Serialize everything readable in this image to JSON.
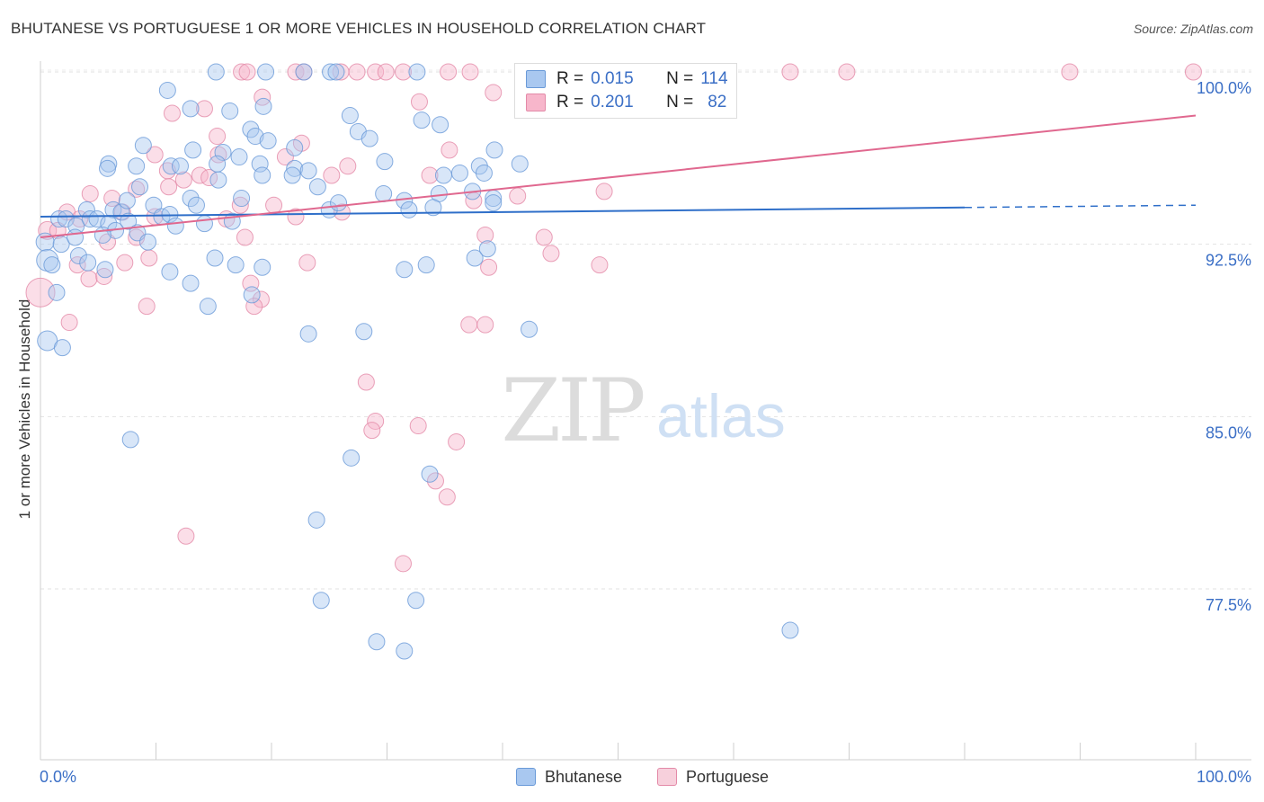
{
  "title": "BHUTANESE VS PORTUGUESE 1 OR MORE VEHICLES IN HOUSEHOLD CORRELATION CHART",
  "source": "Source: ZipAtlas.com",
  "watermark": {
    "zip": "ZIP",
    "atlas": "atlas"
  },
  "legend": {
    "rows": [
      {
        "r_label": "R =",
        "r_value": "0.015",
        "n_label": "N =",
        "n_value": "114"
      },
      {
        "r_label": "R =",
        "r_value": "0.201",
        "n_label": "N =",
        "n_value": "82"
      }
    ]
  },
  "colors": {
    "bhutanese_fill": "#a9c8f0",
    "bhutanese_stroke": "#6a9ad8",
    "bhutanese_line": "#2f6fc9",
    "portuguese_fill": "#f7b6cb",
    "portuguese_stroke": "#e38aa8",
    "portuguese_line": "#e0688f",
    "axis_text": "#3b6fc6"
  },
  "chart_data": {
    "type": "scatter",
    "title": "BHUTANESE VS PORTUGUESE 1 OR MORE VEHICLES IN HOUSEHOLD CORRELATION CHART",
    "xlabel": "",
    "ylabel": "1 or more Vehicles in Household",
    "x_ticks": [
      "0.0%",
      "100.0%"
    ],
    "y_ticks": [
      "100.0%",
      "92.5%",
      "85.0%",
      "77.5%"
    ],
    "xlim": [
      0,
      100
    ],
    "ylim": [
      70.5,
      101
    ],
    "grid": true,
    "legend_position": "bottom",
    "series": [
      {
        "name": "Bhutanese",
        "stats": {
          "R": 0.015,
          "N": 114
        },
        "trend": {
          "x0": 0,
          "y0": 93.7,
          "x1": 80,
          "y1": 94.1,
          "dashed_to_x": 100,
          "dashed_to_y": 94.2
        },
        "points": [
          [
            15.2,
            100
          ],
          [
            19.5,
            100
          ],
          [
            22.8,
            100
          ],
          [
            25.1,
            100
          ],
          [
            25.6,
            100
          ],
          [
            32.6,
            100
          ],
          [
            59.4,
            100
          ],
          [
            11,
            99.2
          ],
          [
            13,
            98.4
          ],
          [
            16.4,
            98.3
          ],
          [
            18.2,
            97.5
          ],
          [
            19.3,
            98.5
          ],
          [
            26.8,
            98.1
          ],
          [
            27.5,
            97.4
          ],
          [
            28.5,
            97.1
          ],
          [
            33,
            97.9
          ],
          [
            34.6,
            97.7
          ],
          [
            18.6,
            97.2
          ],
          [
            19.7,
            97
          ],
          [
            22,
            96.7
          ],
          [
            8.9,
            96.8
          ],
          [
            13.2,
            96.6
          ],
          [
            15.8,
            96.5
          ],
          [
            17.2,
            96.3
          ],
          [
            29.8,
            96.1
          ],
          [
            39.3,
            96.6
          ],
          [
            41.5,
            96
          ],
          [
            5.9,
            96
          ],
          [
            5.8,
            95.8
          ],
          [
            8.3,
            95.9
          ],
          [
            11.3,
            95.9
          ],
          [
            12.1,
            95.9
          ],
          [
            15.3,
            96
          ],
          [
            19,
            96
          ],
          [
            22,
            95.8
          ],
          [
            23.2,
            95.7
          ],
          [
            36.3,
            95.6
          ],
          [
            34.9,
            95.5
          ],
          [
            38,
            95.9
          ],
          [
            38.4,
            95.6
          ],
          [
            8.6,
            95
          ],
          [
            15.4,
            95.3
          ],
          [
            19.2,
            95.5
          ],
          [
            21.8,
            95.5
          ],
          [
            24,
            95
          ],
          [
            29.7,
            94.7
          ],
          [
            31.5,
            94.4
          ],
          [
            34.5,
            94.7
          ],
          [
            37.4,
            94.8
          ],
          [
            39.2,
            94.5
          ],
          [
            13,
            94.5
          ],
          [
            13.5,
            94.2
          ],
          [
            17.4,
            94.5
          ],
          [
            25,
            94
          ],
          [
            25.8,
            94.3
          ],
          [
            31.9,
            94
          ],
          [
            34,
            94.1
          ],
          [
            39.2,
            94.3
          ],
          [
            4,
            94
          ],
          [
            6.3,
            94
          ],
          [
            7,
            93.9
          ],
          [
            7.5,
            94.4
          ],
          [
            9.8,
            94.2
          ],
          [
            10.5,
            93.7
          ],
          [
            11.2,
            93.8
          ],
          [
            11.7,
            93.3
          ],
          [
            1.6,
            93.6
          ],
          [
            2.2,
            93.6
          ],
          [
            3.1,
            93.3
          ],
          [
            4.3,
            93.6
          ],
          [
            4.9,
            93.6
          ],
          [
            5.9,
            93.4
          ],
          [
            6.5,
            93.1
          ],
          [
            7.6,
            93.5
          ],
          [
            14.2,
            93.4
          ],
          [
            16.6,
            93.5
          ],
          [
            0.4,
            92.6
          ],
          [
            1.8,
            92.5
          ],
          [
            3,
            92.8
          ],
          [
            5.4,
            92.9
          ],
          [
            8.4,
            93
          ],
          [
            9.3,
            92.6
          ],
          [
            0.6,
            91.8
          ],
          [
            1,
            91.6
          ],
          [
            3.3,
            92
          ],
          [
            4.1,
            91.7
          ],
          [
            5.6,
            91.4
          ],
          [
            11.2,
            91.3
          ],
          [
            15.1,
            91.9
          ],
          [
            16.9,
            91.6
          ],
          [
            19.2,
            91.5
          ],
          [
            31.5,
            91.4
          ],
          [
            33.4,
            91.6
          ],
          [
            37.6,
            91.9
          ],
          [
            38.7,
            92.3
          ],
          [
            1.4,
            90.4
          ],
          [
            13,
            90.8
          ],
          [
            18.3,
            90.3
          ],
          [
            14.5,
            89.8
          ],
          [
            0.6,
            88.3
          ],
          [
            1.9,
            88
          ],
          [
            23.2,
            88.6
          ],
          [
            28,
            88.7
          ],
          [
            42.3,
            88.8
          ],
          [
            7.8,
            84
          ],
          [
            26.9,
            83.2
          ],
          [
            33.7,
            82.5
          ],
          [
            23.9,
            80.5
          ],
          [
            24.3,
            77
          ],
          [
            32.5,
            77
          ],
          [
            29.1,
            75.2
          ],
          [
            31.5,
            74.8
          ],
          [
            64.9,
            75.7
          ]
        ]
      },
      {
        "name": "Portuguese",
        "stats": {
          "R": 0.201,
          "N": 82
        },
        "trend": {
          "x0": 0,
          "y0": 92.8,
          "x1": 100,
          "y1": 98.1
        },
        "points": [
          [
            17.4,
            100
          ],
          [
            17.9,
            100
          ],
          [
            22.1,
            100
          ],
          [
            22.8,
            100
          ],
          [
            26,
            100
          ],
          [
            27.4,
            100
          ],
          [
            29,
            100
          ],
          [
            29.9,
            100
          ],
          [
            31.4,
            100
          ],
          [
            35.3,
            100
          ],
          [
            37.2,
            100
          ],
          [
            44.2,
            100
          ],
          [
            64.9,
            100
          ],
          [
            69.8,
            100
          ],
          [
            89.1,
            100
          ],
          [
            99.8,
            100
          ],
          [
            19.2,
            98.9
          ],
          [
            32.8,
            98.7
          ],
          [
            39.2,
            99.1
          ],
          [
            44.3,
            99.2
          ],
          [
            14.2,
            98.4
          ],
          [
            11.4,
            98.2
          ],
          [
            15.3,
            97.2
          ],
          [
            22.6,
            96.9
          ],
          [
            35.4,
            96.6
          ],
          [
            21.2,
            96.3
          ],
          [
            9.9,
            96.4
          ],
          [
            15.4,
            96.4
          ],
          [
            26.6,
            95.9
          ],
          [
            11,
            95.7
          ],
          [
            13.8,
            95.5
          ],
          [
            25.2,
            95.5
          ],
          [
            33.7,
            95.5
          ],
          [
            12.4,
            95.3
          ],
          [
            14.6,
            95.4
          ],
          [
            11.1,
            95
          ],
          [
            8.3,
            94.9
          ],
          [
            4.3,
            94.7
          ],
          [
            6.2,
            94.5
          ],
          [
            37.5,
            94.4
          ],
          [
            17.3,
            94.2
          ],
          [
            20.2,
            94.2
          ],
          [
            41.3,
            94.6
          ],
          [
            48.8,
            94.8
          ],
          [
            2.3,
            93.9
          ],
          [
            3.4,
            93.6
          ],
          [
            7.1,
            93.9
          ],
          [
            9.9,
            93.7
          ],
          [
            16.1,
            93.6
          ],
          [
            22.1,
            93.7
          ],
          [
            26.1,
            93.9
          ],
          [
            0.6,
            93.1
          ],
          [
            1.5,
            93.1
          ],
          [
            5.8,
            92.6
          ],
          [
            8.3,
            92.8
          ],
          [
            17.7,
            92.8
          ],
          [
            38.5,
            92.9
          ],
          [
            43.6,
            92.8
          ],
          [
            44.2,
            92.1
          ],
          [
            3.2,
            91.6
          ],
          [
            4.2,
            91
          ],
          [
            5.5,
            91.1
          ],
          [
            7.3,
            91.7
          ],
          [
            9.4,
            91.9
          ],
          [
            23.1,
            91.7
          ],
          [
            38.8,
            91.5
          ],
          [
            48.4,
            91.6
          ],
          [
            0,
            90.4
          ],
          [
            19.1,
            90.1
          ],
          [
            18.5,
            89.8
          ],
          [
            9.2,
            89.8
          ],
          [
            2.5,
            89.1
          ],
          [
            37.1,
            89
          ],
          [
            38.5,
            89
          ],
          [
            18.2,
            90.8
          ],
          [
            28.2,
            86.5
          ],
          [
            29,
            84.8
          ],
          [
            32.7,
            84.6
          ],
          [
            28.7,
            84.4
          ],
          [
            36,
            83.9
          ],
          [
            34.2,
            82.2
          ],
          [
            35.2,
            81.5
          ],
          [
            12.6,
            79.8
          ],
          [
            31.4,
            78.6
          ]
        ]
      }
    ]
  }
}
